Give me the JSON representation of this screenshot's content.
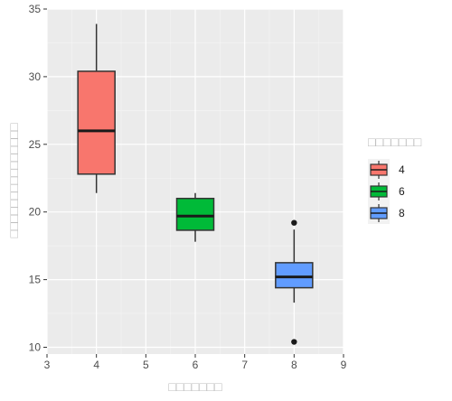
{
  "chart_data": {
    "type": "boxplot",
    "xlabel": "□□□□□□□",
    "ylabel": "□□□□□□□□□□□□□□□",
    "legend_title": "□□□□□□□",
    "xlim": [
      3,
      9
    ],
    "ylim": [
      9.5,
      35
    ],
    "x_ticks": [
      "3",
      "4",
      "5",
      "6",
      "7",
      "8",
      "9"
    ],
    "y_ticks": [
      "10",
      "15",
      "20",
      "25",
      "30",
      "35"
    ],
    "grid": true,
    "legend_position": "right",
    "boxes": [
      {
        "name": "4",
        "x": 4,
        "whisker_low": 21.4,
        "q1": 22.8,
        "median": 26.0,
        "q3": 30.4,
        "whisker_high": 33.9,
        "outliers": [],
        "color": "#F8766D"
      },
      {
        "name": "6",
        "x": 6,
        "whisker_low": 17.8,
        "q1": 18.65,
        "median": 19.7,
        "q3": 21.0,
        "whisker_high": 21.4,
        "outliers": [],
        "color": "#00BA38"
      },
      {
        "name": "8",
        "x": 8,
        "whisker_low": 13.3,
        "q1": 14.4,
        "median": 15.2,
        "q3": 16.25,
        "whisker_high": 18.7,
        "outliers": [
          10.4,
          19.2
        ],
        "color": "#619CFF"
      }
    ]
  }
}
